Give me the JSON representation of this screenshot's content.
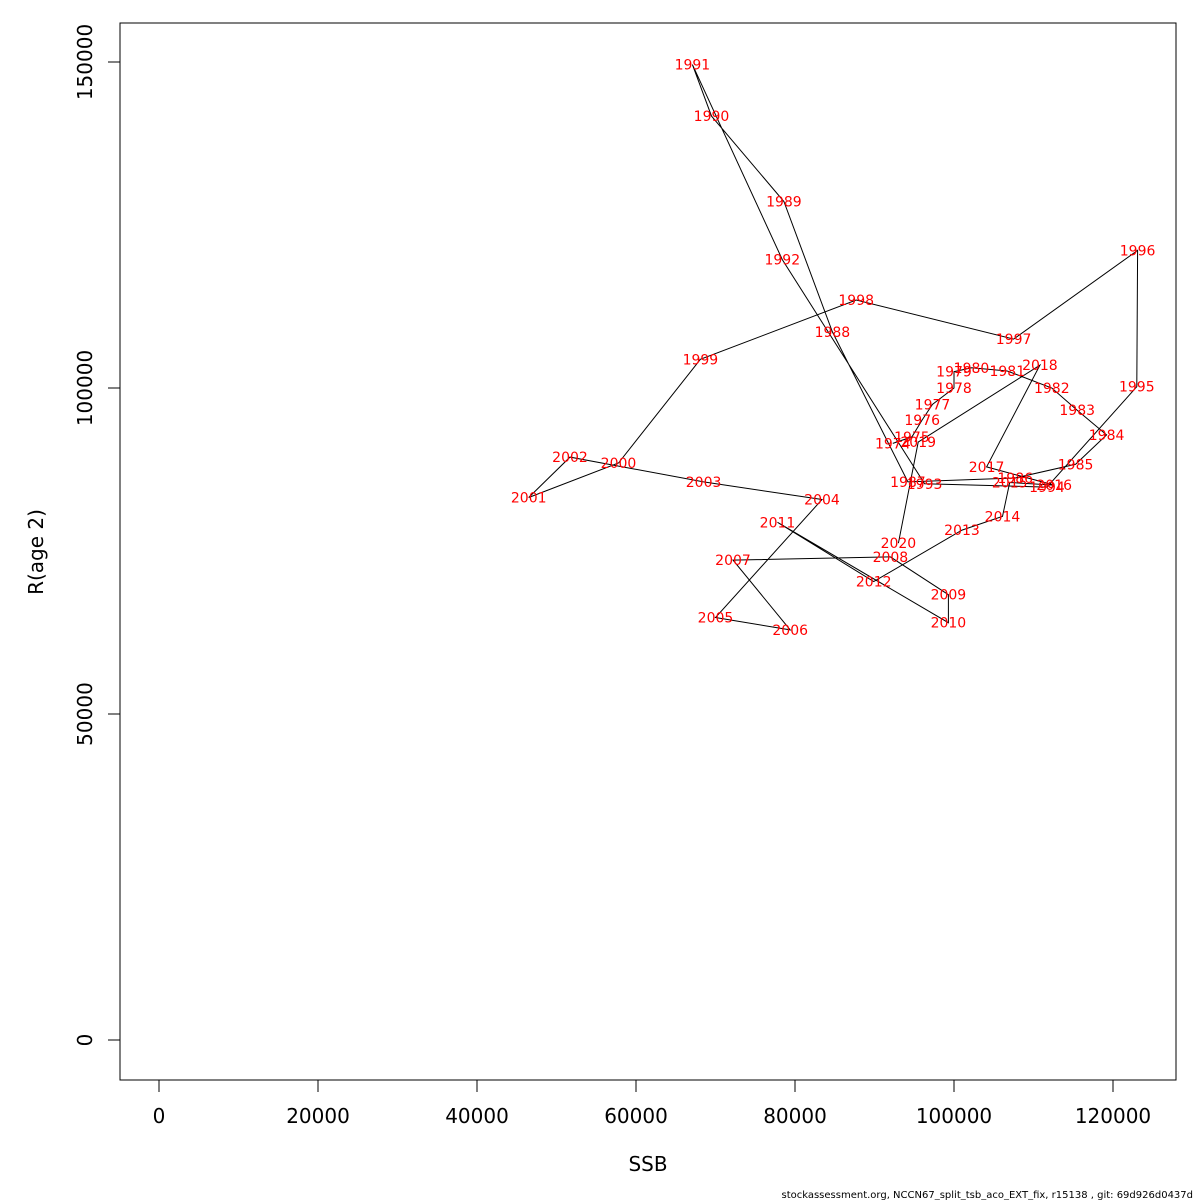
{
  "chart_data": {
    "type": "scatter",
    "title": "",
    "xlabel": "SSB",
    "ylabel": "R(age 2)",
    "xlim": [
      -5000,
      128000
    ],
    "ylim": [
      -6000,
      156000
    ],
    "x_ticks": [
      0,
      20000,
      40000,
      60000,
      80000,
      100000,
      120000
    ],
    "y_ticks": [
      0,
      50000,
      100000,
      150000
    ],
    "grid": false,
    "connected": true,
    "line_color": "#000000",
    "label_color": "#ff0000",
    "points": [
      {
        "year": "1974",
        "x": 92300,
        "y": 91500
      },
      {
        "year": "1975",
        "x": 94700,
        "y": 92500
      },
      {
        "year": "1976",
        "x": 96000,
        "y": 95100
      },
      {
        "year": "1977",
        "x": 97300,
        "y": 97500
      },
      {
        "year": "1978",
        "x": 100000,
        "y": 100000
      },
      {
        "year": "1979",
        "x": 100000,
        "y": 102500
      },
      {
        "year": "1980",
        "x": 102200,
        "y": 103100
      },
      {
        "year": "1981",
        "x": 106700,
        "y": 102600
      },
      {
        "year": "1982",
        "x": 112300,
        "y": 100000
      },
      {
        "year": "1983",
        "x": 115500,
        "y": 96600
      },
      {
        "year": "1984",
        "x": 119200,
        "y": 92800
      },
      {
        "year": "1985",
        "x": 115300,
        "y": 88300
      },
      {
        "year": "1986",
        "x": 107700,
        "y": 86200
      },
      {
        "year": "1987",
        "x": 94200,
        "y": 85600
      },
      {
        "year": "1988",
        "x": 84700,
        "y": 108600
      },
      {
        "year": "1989",
        "x": 78600,
        "y": 128600
      },
      {
        "year": "1990",
        "x": 69500,
        "y": 141700
      },
      {
        "year": "1991",
        "x": 67100,
        "y": 149600
      },
      {
        "year": "1992",
        "x": 78400,
        "y": 119700
      },
      {
        "year": "1993",
        "x": 96300,
        "y": 85300
      },
      {
        "year": "1994",
        "x": 111700,
        "y": 84800
      },
      {
        "year": "1995",
        "x": 123000,
        "y": 100200
      },
      {
        "year": "1996",
        "x": 123100,
        "y": 121100
      },
      {
        "year": "1997",
        "x": 107500,
        "y": 107500
      },
      {
        "year": "1998",
        "x": 87700,
        "y": 113500
      },
      {
        "year": "1999",
        "x": 68100,
        "y": 104400
      },
      {
        "year": "2000",
        "x": 57800,
        "y": 88500
      },
      {
        "year": "2001",
        "x": 46500,
        "y": 83200
      },
      {
        "year": "2002",
        "x": 51700,
        "y": 89400
      },
      {
        "year": "2003",
        "x": 68500,
        "y": 85600
      },
      {
        "year": "2004",
        "x": 83400,
        "y": 82900
      },
      {
        "year": "2005",
        "x": 70000,
        "y": 64800
      },
      {
        "year": "2006",
        "x": 79400,
        "y": 62900
      },
      {
        "year": "2007",
        "x": 72200,
        "y": 73600
      },
      {
        "year": "2008",
        "x": 92000,
        "y": 74100
      },
      {
        "year": "2009",
        "x": 99300,
        "y": 68300
      },
      {
        "year": "2010",
        "x": 99300,
        "y": 64000
      },
      {
        "year": "2011",
        "x": 77800,
        "y": 79400
      },
      {
        "year": "2012",
        "x": 89900,
        "y": 70300
      },
      {
        "year": "2013",
        "x": 101000,
        "y": 78200
      },
      {
        "year": "2014",
        "x": 106100,
        "y": 80300
      },
      {
        "year": "2015",
        "x": 107000,
        "y": 85500
      },
      {
        "year": "2016",
        "x": 112600,
        "y": 85100
      },
      {
        "year": "2017",
        "x": 104100,
        "y": 87900
      },
      {
        "year": "2018",
        "x": 110800,
        "y": 103500
      },
      {
        "year": "2019",
        "x": 95500,
        "y": 91700
      },
      {
        "year": "2020",
        "x": 93000,
        "y": 76200
      }
    ]
  },
  "footer": "stockassessment.org, NCCN67_split_tsb_aco_EXT_fix, r15138 , git: 69d926d0437d"
}
